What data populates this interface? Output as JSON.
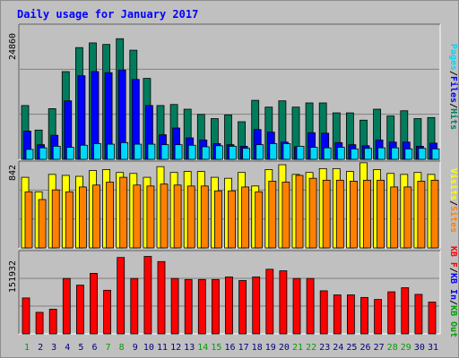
{
  "title": "Daily usage for January 2017",
  "colors": {
    "background": "#c0c0c0",
    "border": "#8c8c8c",
    "title": "#0000ff",
    "grid": "#808080",
    "hits": "#007c5c",
    "files": "#0000ff",
    "pages": "#00d8f8",
    "visits": "#ffff00",
    "sites": "#ff8000",
    "kbin": "#0000ff",
    "kbout": "#00a000",
    "kbf": "#ff0000",
    "weekday": "#000080",
    "weekend": "#00a000"
  },
  "chart_data": [
    {
      "type": "bar",
      "axis_max_label": "24860",
      "ylim": [
        0,
        24860
      ],
      "grid": true,
      "legend": "right-vertical",
      "legend_entries": [
        {
          "label": "Pages",
          "color": "#00d8f8"
        },
        {
          "label": "Files",
          "color": "#0000ff"
        },
        {
          "label": "Hits",
          "color": "#007c5c"
        }
      ],
      "legend_separators": [
        "/",
        "/"
      ],
      "series": [
        {
          "name": "Hits",
          "values": [
            10300,
            5600,
            9700,
            16800,
            21400,
            22300,
            22000,
            23100,
            20900,
            15500,
            10300,
            10500,
            9600,
            8600,
            7800,
            8500,
            7200,
            11300,
            10000,
            11200,
            10000,
            10800,
            10800,
            8900,
            8900,
            7500,
            9600,
            8300,
            9300,
            7800,
            8000
          ]
        },
        {
          "name": "Files",
          "values": [
            5400,
            2800,
            4600,
            11200,
            16000,
            16800,
            16600,
            17100,
            15300,
            10300,
            4700,
            6000,
            4100,
            3700,
            3000,
            2800,
            2500,
            5700,
            5200,
            3300,
            2400,
            5100,
            5000,
            3200,
            2800,
            2600,
            3700,
            3300,
            3300,
            2500,
            3100
          ]
        },
        {
          "name": "Pages",
          "values": [
            1900,
            2200,
            2500,
            2300,
            2700,
            3000,
            2900,
            3200,
            2900,
            2900,
            2800,
            2800,
            2700,
            2400,
            2600,
            2500,
            2100,
            2800,
            3000,
            3000,
            2500,
            2300,
            2200,
            2300,
            2000,
            2100,
            2200,
            2200,
            2000,
            2100,
            2000
          ]
        }
      ]
    },
    {
      "type": "bar",
      "axis_max_label": "842",
      "ylim": [
        0,
        842
      ],
      "grid": true,
      "legend": "right-vertical",
      "legend_entries": [
        {
          "label": "Visits",
          "color": "#ffff00"
        },
        {
          "label": "Sites",
          "color": "#ff8000"
        }
      ],
      "legend_separators": [
        "/"
      ],
      "series": [
        {
          "name": "Visits",
          "values": [
            730,
            580,
            760,
            750,
            740,
            800,
            810,
            780,
            770,
            730,
            840,
            780,
            790,
            790,
            730,
            720,
            780,
            640,
            810,
            860,
            760,
            780,
            820,
            820,
            790,
            880,
            810,
            770,
            760,
            780,
            760
          ]
        },
        {
          "name": "Sites",
          "values": [
            580,
            500,
            600,
            580,
            630,
            650,
            680,
            730,
            650,
            640,
            660,
            650,
            640,
            640,
            590,
            590,
            630,
            580,
            690,
            680,
            750,
            720,
            700,
            700,
            690,
            700,
            700,
            630,
            630,
            690,
            700
          ]
        }
      ]
    },
    {
      "type": "bar",
      "axis_max_label": "151932",
      "ylim": [
        0,
        151932
      ],
      "grid": true,
      "legend": "right-vertical",
      "legend_entries": [
        {
          "label": "KB F",
          "color": "#ff0000"
        },
        {
          "label": "KB In",
          "color": "#0000ff"
        },
        {
          "label": "KB Out",
          "color": "#00a000"
        }
      ],
      "legend_separators": [
        "/",
        "/"
      ],
      "series": [
        {
          "name": "KB F",
          "values": [
            70000,
            42000,
            48000,
            108000,
            95000,
            118000,
            85000,
            149000,
            108000,
            151000,
            141000,
            108000,
            106000,
            106000,
            106000,
            111000,
            104000,
            111000,
            126000,
            123000,
            108000,
            108000,
            84000,
            76000,
            76000,
            71000,
            67000,
            82000,
            90000,
            77000,
            62000
          ]
        }
      ]
    }
  ],
  "x_labels": [
    {
      "text": "1",
      "weekend": true
    },
    {
      "text": "2",
      "weekend": false
    },
    {
      "text": "3",
      "weekend": false
    },
    {
      "text": "4",
      "weekend": false
    },
    {
      "text": "5",
      "weekend": false
    },
    {
      "text": "6",
      "weekend": false
    },
    {
      "text": "7",
      "weekend": true
    },
    {
      "text": "8",
      "weekend": true
    },
    {
      "text": "9",
      "weekend": false
    },
    {
      "text": "10",
      "weekend": false
    },
    {
      "text": "11",
      "weekend": false
    },
    {
      "text": "12",
      "weekend": false
    },
    {
      "text": "13",
      "weekend": false
    },
    {
      "text": "14",
      "weekend": true
    },
    {
      "text": "15",
      "weekend": true
    },
    {
      "text": "16",
      "weekend": false
    },
    {
      "text": "17",
      "weekend": false
    },
    {
      "text": "18",
      "weekend": false
    },
    {
      "text": "19",
      "weekend": false
    },
    {
      "text": "20",
      "weekend": false
    },
    {
      "text": "21",
      "weekend": true
    },
    {
      "text": "22",
      "weekend": true
    },
    {
      "text": "23",
      "weekend": false
    },
    {
      "text": "24",
      "weekend": false
    },
    {
      "text": "25",
      "weekend": false
    },
    {
      "text": "26",
      "weekend": false
    },
    {
      "text": "27",
      "weekend": false
    },
    {
      "text": "28",
      "weekend": true
    },
    {
      "text": "29",
      "weekend": true
    },
    {
      "text": "30",
      "weekend": false
    },
    {
      "text": "31",
      "weekend": false
    }
  ]
}
